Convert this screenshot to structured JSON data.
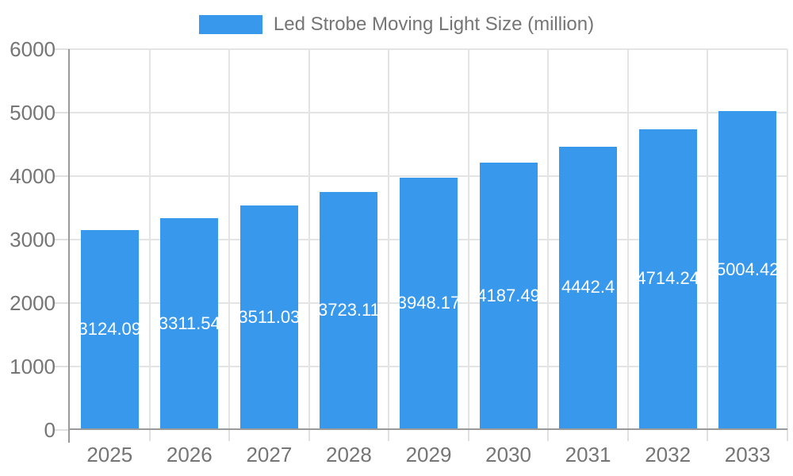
{
  "legend": {
    "label": "Led Strobe Moving Light Size (million)"
  },
  "chart_data": {
    "type": "bar",
    "title": "Led Strobe Moving Light Size (million)",
    "categories": [
      "2025",
      "2026",
      "2027",
      "2028",
      "2029",
      "2030",
      "2031",
      "2032",
      "2033"
    ],
    "values": [
      3124.09,
      3311.54,
      3511.03,
      3723.11,
      3948.17,
      4187.49,
      4442.4,
      4714.24,
      5004.42
    ],
    "bar_labels": [
      "3124.09",
      "3311.54",
      "3511.03",
      "3723.11",
      "3948.17",
      "4187.49",
      "4442.4",
      "4714.24",
      "5004.42"
    ],
    "xlabel": "",
    "ylabel": "",
    "ylim": [
      0,
      6000
    ],
    "y_ticks": [
      "6000",
      "5000",
      "4000",
      "3000",
      "2000",
      "1000",
      "0"
    ],
    "grid": true,
    "legend_position": "top-center",
    "value_labels_position": "inside-center",
    "colors": {
      "bar": "#3898ec",
      "grid": "#e4e4e4",
      "tick": "#e0e0e0",
      "axis_line": "#9a9a9a",
      "axis_text": "#757575",
      "bar_label_text": "#ffffff"
    }
  }
}
